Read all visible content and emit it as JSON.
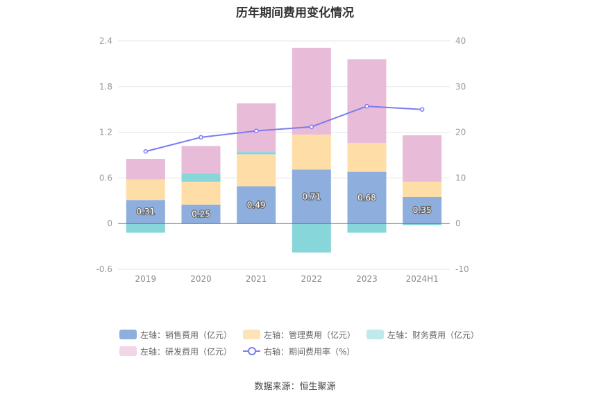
{
  "chart_data": {
    "type": "bar",
    "title": "历年期间费用变化情况",
    "categories": [
      "2019",
      "2020",
      "2021",
      "2022",
      "2023",
      "2024H1"
    ],
    "y_left": {
      "ylim": [
        -0.6,
        2.4
      ],
      "ticks": [
        "2.4",
        "1.8",
        "1.2",
        "0.6",
        "0",
        "-0.6"
      ]
    },
    "y_right": {
      "ylim": [
        -10,
        40
      ],
      "ticks": [
        "40",
        "30",
        "20",
        "10",
        "0",
        "-10"
      ]
    },
    "series": [
      {
        "name": "左轴：销售费用（亿元）",
        "kind": "bar",
        "axis": "left",
        "color": "#8eaedd",
        "values": [
          0.31,
          0.25,
          0.49,
          0.71,
          0.68,
          0.35
        ],
        "labels": [
          "0.31",
          "0.25",
          "0.49",
          "0.71",
          "0.68",
          "0.35"
        ]
      },
      {
        "name": "左轴：管理费用（亿元）",
        "kind": "bar",
        "axis": "left",
        "color": "#fedea6",
        "values": [
          0.27,
          0.3,
          0.42,
          0.46,
          0.38,
          0.2
        ]
      },
      {
        "name": "左轴：财务费用（亿元）",
        "kind": "bar",
        "axis": "left",
        "color": "#87d6da",
        "values": [
          -0.12,
          0.11,
          0.03,
          -0.38,
          -0.12,
          -0.02
        ]
      },
      {
        "name": "左轴：研发费用（亿元）",
        "kind": "bar",
        "axis": "left",
        "color": "#e8bbd9",
        "values": [
          0.27,
          0.36,
          0.64,
          1.14,
          1.1,
          0.61
        ]
      },
      {
        "name": "右轴：期间费用率（%）",
        "kind": "line",
        "axis": "right",
        "color": "#7b7cf0",
        "values": [
          15.8,
          18.9,
          20.3,
          21.2,
          25.7,
          25.0
        ]
      }
    ],
    "grid": true,
    "legend_position": "bottom"
  },
  "footer": {
    "source": "数据来源：恒生聚源"
  }
}
